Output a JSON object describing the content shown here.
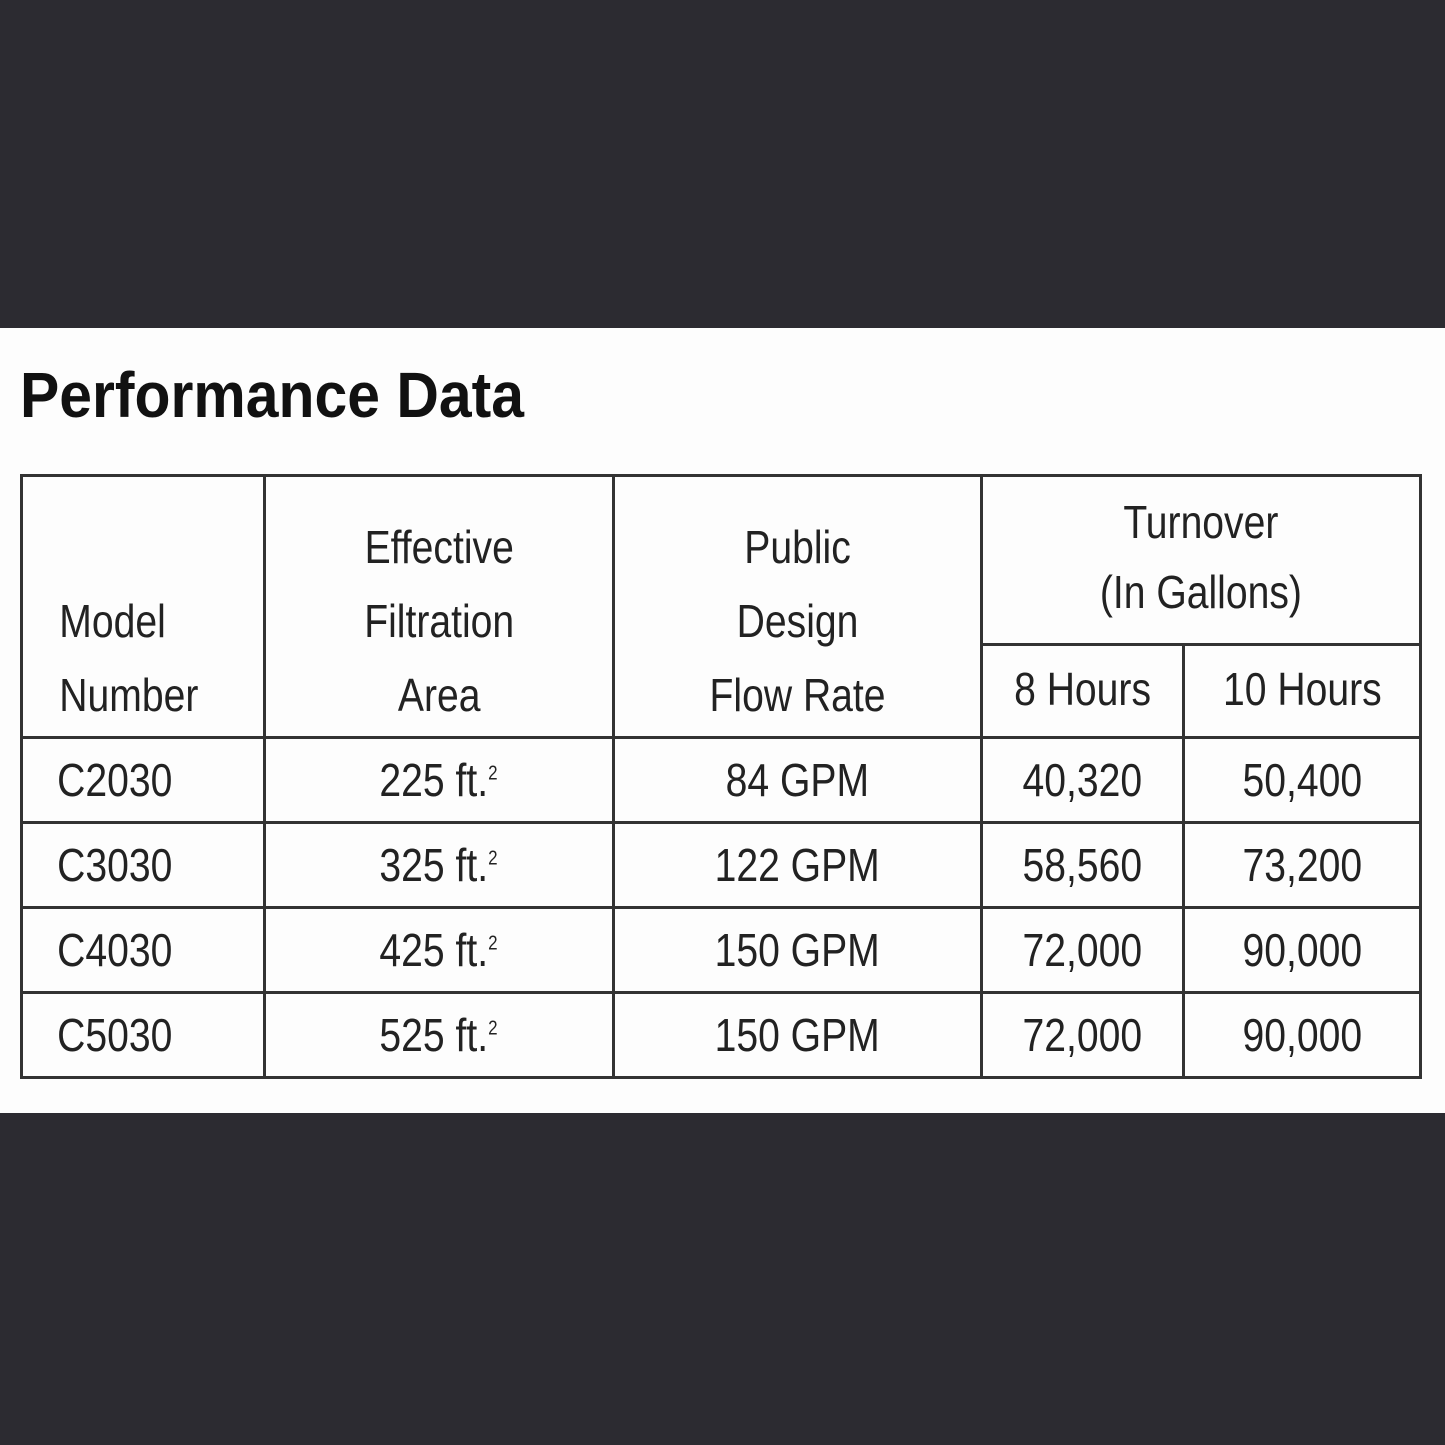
{
  "title": "Performance Data",
  "headers": {
    "model": [
      "Model",
      "Number"
    ],
    "area": [
      "Effective",
      "Filtration",
      "Area"
    ],
    "flow": [
      "Public",
      "Design",
      "Flow Rate"
    ],
    "turnover": [
      "Turnover",
      "(In Gallons)"
    ],
    "hours8": "8 Hours",
    "hours10": "10 Hours"
  },
  "unit_superscript": "2",
  "rows": [
    {
      "model": "C2030",
      "area": "225 ft.",
      "flow": "84 GPM",
      "h8": "40,320",
      "h10": "50,400"
    },
    {
      "model": "C3030",
      "area": "325 ft.",
      "flow": "122 GPM",
      "h8": "58,560",
      "h10": "73,200"
    },
    {
      "model": "C4030",
      "area": "425 ft.",
      "flow": "150 GPM",
      "h8": "72,000",
      "h10": "90,000"
    },
    {
      "model": "C5030",
      "area": "525 ft.",
      "flow": "150 GPM",
      "h8": "72,000",
      "h10": "90,000"
    }
  ]
}
